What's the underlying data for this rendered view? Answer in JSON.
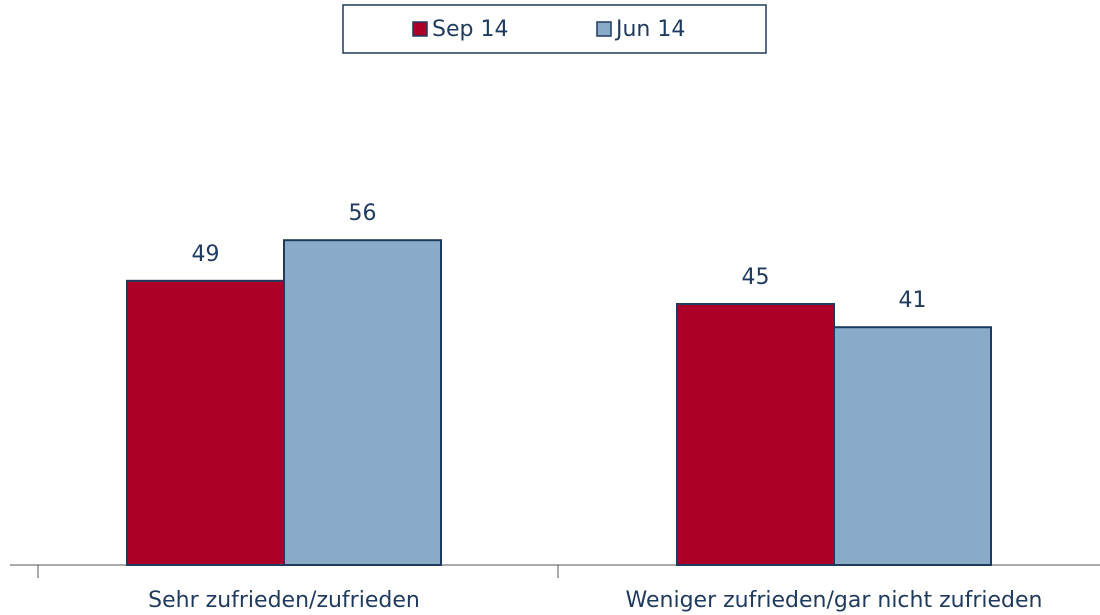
{
  "chart_data": {
    "type": "bar",
    "categories": [
      "Sehr zufrieden/zufrieden",
      "Weniger zufrieden/gar nicht zufrieden"
    ],
    "series": [
      {
        "name": "Sep 14",
        "color": "#ad0029",
        "values": [
          49,
          45
        ]
      },
      {
        "name": "Jun 14",
        "color": "#8aabc8",
        "values": [
          56,
          41
        ]
      }
    ],
    "legend": "top"
  }
}
